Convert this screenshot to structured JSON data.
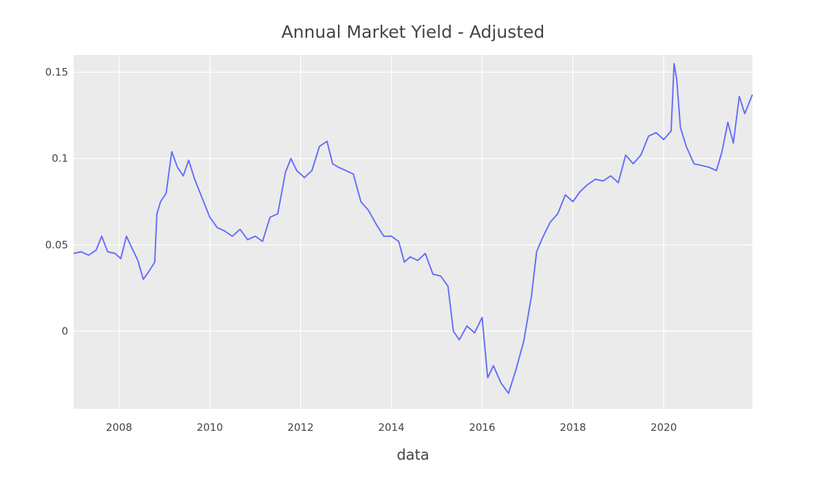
{
  "chart_data": {
    "type": "line",
    "title": "Annual Market Yield - Adjusted",
    "xlabel": "data",
    "ylabel": "",
    "x_range": [
      "2007-01-01",
      "2021-12-15"
    ],
    "ylim": [
      -0.045,
      0.16
    ],
    "x_ticks": [
      "2008",
      "2010",
      "2012",
      "2014",
      "2016",
      "2018",
      "2020"
    ],
    "y_ticks": [
      {
        "value": 0.15,
        "label": "0.15"
      },
      {
        "value": 0.1,
        "label": "0.1"
      },
      {
        "value": 0.05,
        "label": "0.05"
      },
      {
        "value": 0,
        "label": "0"
      }
    ],
    "grid": true,
    "legend": "none",
    "series": [
      {
        "color": "#636efa",
        "x": [
          "2007-01-01",
          "2007-03-01",
          "2007-05-01",
          "2007-07-01",
          "2007-08-15",
          "2007-10-01",
          "2007-12-01",
          "2008-01-15",
          "2008-03-01",
          "2008-04-15",
          "2008-06-01",
          "2008-07-15",
          "2008-09-01",
          "2008-10-15",
          "2008-11-01",
          "2008-12-01",
          "2009-01-15",
          "2009-03-01",
          "2009-04-15",
          "2009-06-01",
          "2009-07-15",
          "2009-09-01",
          "2009-11-01",
          "2010-01-01",
          "2010-03-01",
          "2010-05-01",
          "2010-07-01",
          "2010-09-01",
          "2010-11-01",
          "2011-01-01",
          "2011-03-01",
          "2011-05-01",
          "2011-07-01",
          "2011-09-01",
          "2011-10-15",
          "2011-12-01",
          "2012-02-01",
          "2012-04-01",
          "2012-06-01",
          "2012-08-01",
          "2012-09-15",
          "2012-11-01",
          "2013-01-01",
          "2013-03-01",
          "2013-05-01",
          "2013-07-01",
          "2013-09-01",
          "2013-11-01",
          "2014-01-01",
          "2014-03-01",
          "2014-04-15",
          "2014-06-01",
          "2014-08-01",
          "2014-10-01",
          "2014-12-01",
          "2015-02-01",
          "2015-04-01",
          "2015-05-15",
          "2015-07-01",
          "2015-09-01",
          "2015-11-01",
          "2016-01-01",
          "2016-02-15",
          "2016-04-01",
          "2016-06-01",
          "2016-08-01",
          "2016-10-01",
          "2016-12-01",
          "2017-02-01",
          "2017-03-15",
          "2017-05-01",
          "2017-07-01",
          "2017-09-01",
          "2017-11-01",
          "2018-01-01",
          "2018-03-01",
          "2018-05-01",
          "2018-07-01",
          "2018-09-01",
          "2018-11-01",
          "2019-01-01",
          "2019-03-01",
          "2019-05-01",
          "2019-07-01",
          "2019-09-01",
          "2019-11-01",
          "2020-01-01",
          "2020-03-01",
          "2020-03-25",
          "2020-04-15",
          "2020-05-15",
          "2020-07-01",
          "2020-09-01",
          "2020-11-01",
          "2021-01-01",
          "2021-03-01",
          "2021-04-15",
          "2021-06-01",
          "2021-07-15",
          "2021-09-01",
          "2021-10-15",
          "2021-12-15"
        ],
        "y": [
          0.045,
          0.046,
          0.044,
          0.047,
          0.055,
          0.046,
          0.045,
          0.042,
          0.055,
          0.048,
          0.041,
          0.03,
          0.035,
          0.04,
          0.068,
          0.075,
          0.08,
          0.104,
          0.095,
          0.09,
          0.099,
          0.088,
          0.077,
          0.066,
          0.06,
          0.058,
          0.055,
          0.059,
          0.053,
          0.055,
          0.052,
          0.066,
          0.068,
          0.092,
          0.1,
          0.093,
          0.089,
          0.093,
          0.107,
          0.11,
          0.097,
          0.095,
          0.093,
          0.091,
          0.075,
          0.07,
          0.062,
          0.055,
          0.055,
          0.052,
          0.04,
          0.043,
          0.041,
          0.045,
          0.033,
          0.032,
          0.026,
          0.0,
          -0.005,
          0.003,
          -0.001,
          0.008,
          -0.027,
          -0.02,
          -0.03,
          -0.036,
          -0.022,
          -0.006,
          0.02,
          0.046,
          0.054,
          0.063,
          0.068,
          0.079,
          0.075,
          0.081,
          0.085,
          0.088,
          0.087,
          0.09,
          0.086,
          0.102,
          0.097,
          0.102,
          0.113,
          0.115,
          0.111,
          0.116,
          0.155,
          0.146,
          0.118,
          0.107,
          0.097,
          0.096,
          0.095,
          0.093,
          0.104,
          0.121,
          0.109,
          0.136,
          0.126,
          0.137
        ]
      }
    ]
  }
}
